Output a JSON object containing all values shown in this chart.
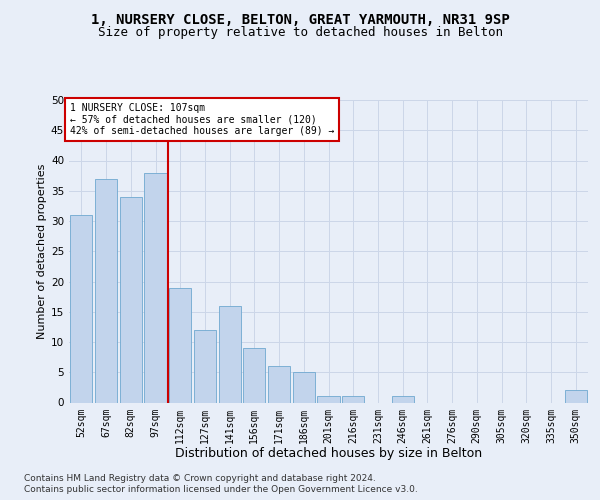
{
  "title1": "1, NURSERY CLOSE, BELTON, GREAT YARMOUTH, NR31 9SP",
  "title2": "Size of property relative to detached houses in Belton",
  "xlabel": "Distribution of detached houses by size in Belton",
  "ylabel": "Number of detached properties",
  "categories": [
    "52sqm",
    "67sqm",
    "82sqm",
    "97sqm",
    "112sqm",
    "127sqm",
    "141sqm",
    "156sqm",
    "171sqm",
    "186sqm",
    "201sqm",
    "216sqm",
    "231sqm",
    "246sqm",
    "261sqm",
    "276sqm",
    "290sqm",
    "305sqm",
    "320sqm",
    "335sqm",
    "350sqm"
  ],
  "values": [
    31,
    37,
    34,
    38,
    19,
    12,
    16,
    9,
    6,
    5,
    1,
    1,
    0,
    1,
    0,
    0,
    0,
    0,
    0,
    0,
    2
  ],
  "bar_color": "#c2d4ec",
  "bar_edge_color": "#6fa8d0",
  "vline_color": "#cc0000",
  "vline_x": 3.5,
  "annotation_text": "1 NURSERY CLOSE: 107sqm\n← 57% of detached houses are smaller (120)\n42% of semi-detached houses are larger (89) →",
  "annotation_box_facecolor": "#ffffff",
  "annotation_box_edgecolor": "#cc0000",
  "ylim": [
    0,
    50
  ],
  "yticks": [
    0,
    5,
    10,
    15,
    20,
    25,
    30,
    35,
    40,
    45,
    50
  ],
  "grid_color": "#ccd6e8",
  "footer1": "Contains HM Land Registry data © Crown copyright and database right 2024.",
  "footer2": "Contains public sector information licensed under the Open Government Licence v3.0.",
  "bg_color": "#e8eef8",
  "title1_fontsize": 10,
  "title2_fontsize": 9,
  "xlabel_fontsize": 9,
  "ylabel_fontsize": 8,
  "tick_fontsize": 7,
  "annot_fontsize": 7,
  "footer_fontsize": 6.5
}
